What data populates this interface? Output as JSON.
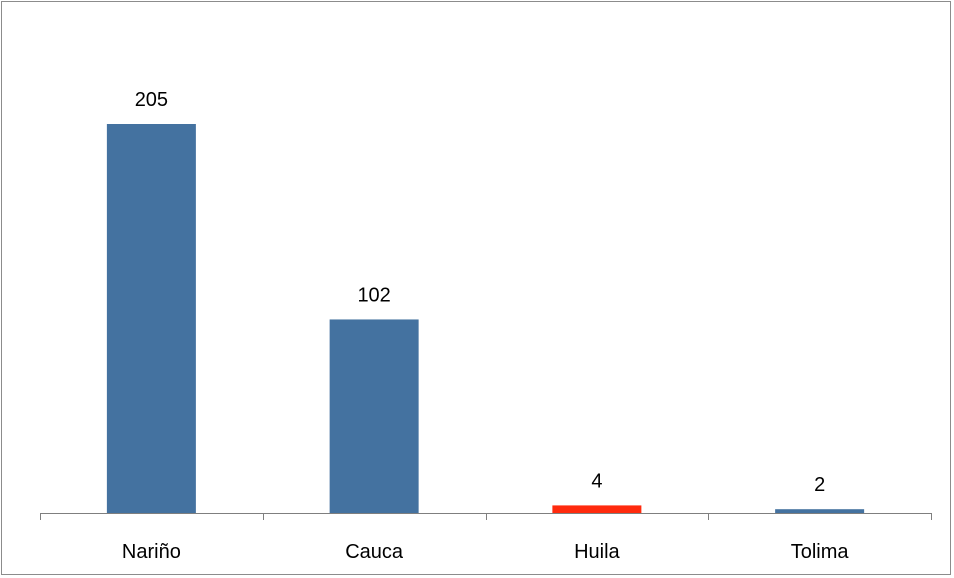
{
  "chart_data": {
    "type": "bar",
    "title": "",
    "xlabel": "",
    "ylabel": "",
    "categories": [
      "Nariño",
      "Cauca",
      "Huila",
      "Tolima"
    ],
    "values": [
      205,
      102,
      4,
      2
    ],
    "data_labels": [
      "205",
      "102",
      "4",
      "2"
    ],
    "bar_colors": [
      "#4472a0",
      "#4472a0",
      "#ff2a0d",
      "#4472a0"
    ],
    "ylim": [
      0,
      205
    ],
    "grid": false,
    "legend": "none",
    "y_axis_visible": false
  },
  "colors": {
    "axis": "#7f7f7f",
    "border": "#8c8c8c",
    "background": "#ffffff"
  }
}
